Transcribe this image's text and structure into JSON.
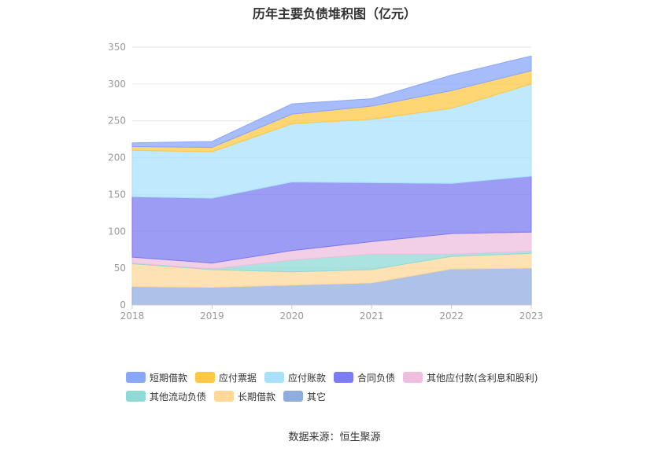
{
  "chart_data": {
    "type": "area",
    "stacked": true,
    "title": "历年主要负债堆积图（亿元）",
    "xlabel": "",
    "ylabel": "",
    "categories": [
      "2018",
      "2019",
      "2020",
      "2021",
      "2022",
      "2023"
    ],
    "ylim": [
      0,
      350
    ],
    "yticks": [
      0,
      50,
      100,
      150,
      200,
      250,
      300,
      350
    ],
    "grid": true,
    "legend_position": "bottom",
    "series": [
      {
        "name": "其它",
        "color": "#91ade0",
        "values": [
          25,
          24,
          27,
          30,
          49,
          50
        ]
      },
      {
        "name": "长期借款",
        "color": "#ffd89a",
        "values": [
          31,
          24,
          18,
          18,
          17,
          20
        ]
      },
      {
        "name": "其他流动负债",
        "color": "#8fd9d6",
        "values": [
          1,
          1,
          16,
          21,
          3,
          3
        ]
      },
      {
        "name": "其他应付款(含利息和股利)",
        "color": "#eebfdf",
        "values": [
          8,
          8,
          13,
          17,
          28,
          26
        ]
      },
      {
        "name": "合同负债",
        "color": "#7b7bf2",
        "values": [
          82,
          88,
          93,
          80,
          68,
          76
        ]
      },
      {
        "name": "应付账款",
        "color": "#a9e1fb",
        "values": [
          63,
          63,
          79,
          86,
          102,
          125
        ]
      },
      {
        "name": "应付票据",
        "color": "#ffc845",
        "values": [
          5,
          6,
          13,
          18,
          24,
          18
        ]
      },
      {
        "name": "短期借款",
        "color": "#8aa6f8",
        "values": [
          5,
          8,
          14,
          10,
          21,
          20
        ]
      }
    ]
  },
  "legend": {
    "items": [
      {
        "label": "短期借款",
        "color": "#8aa6f8"
      },
      {
        "label": "应付票据",
        "color": "#ffc845"
      },
      {
        "label": "应付账款",
        "color": "#a9e1fb"
      },
      {
        "label": "合同负债",
        "color": "#7b7bf2"
      },
      {
        "label": "其他应付款(含利息和股利)",
        "color": "#eebfdf"
      },
      {
        "label": "其他流动负债",
        "color": "#8fd9d6"
      },
      {
        "label": "长期借款",
        "color": "#ffd89a"
      },
      {
        "label": "其它",
        "color": "#91ade0"
      }
    ]
  },
  "source": "数据来源：恒生聚源"
}
